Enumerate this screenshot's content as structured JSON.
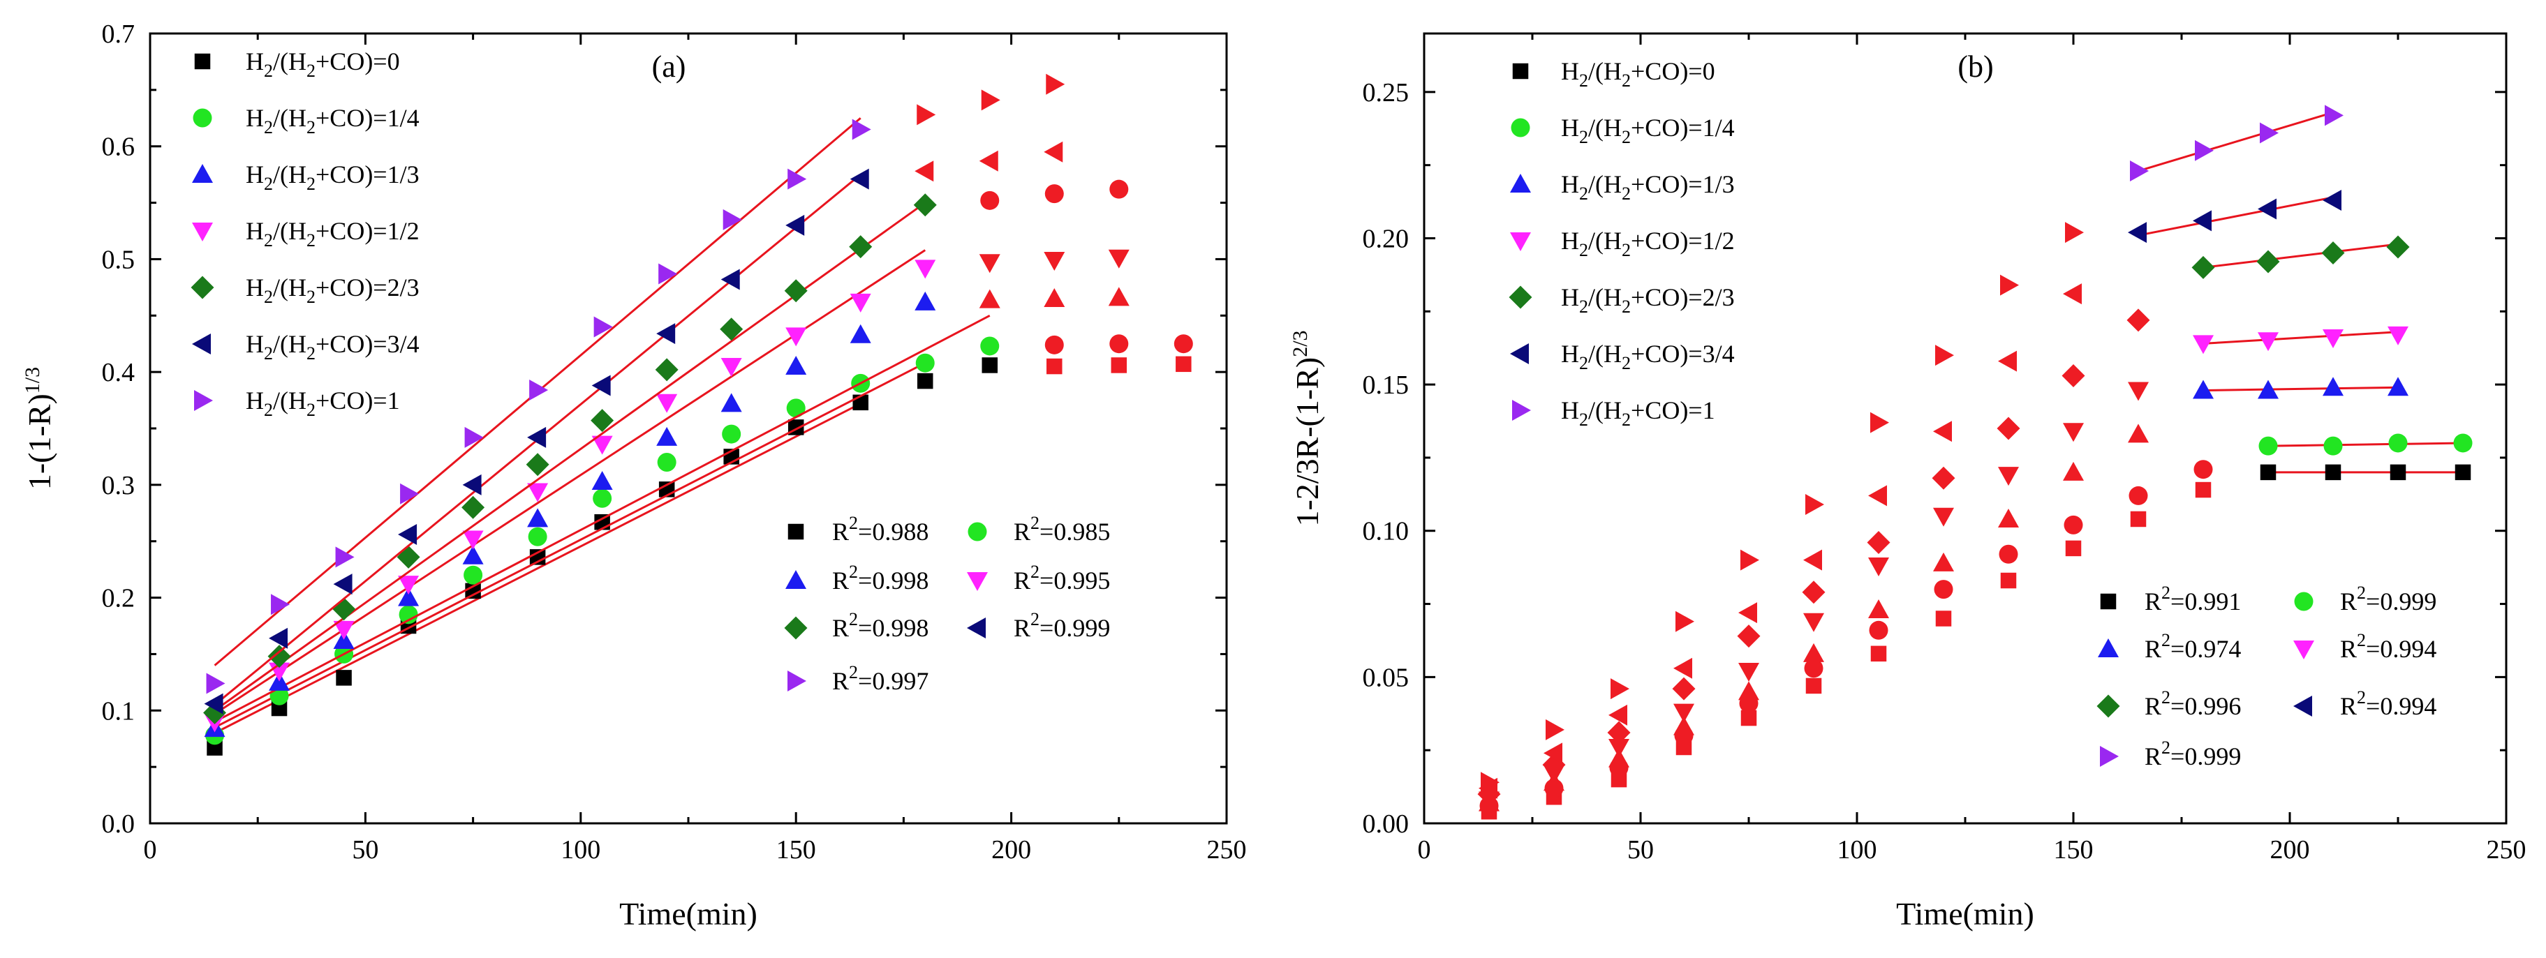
{
  "chart_data": [
    {
      "type": "scatter",
      "panel_label": "(a)",
      "xlabel": "Time(min)",
      "ylabel_base": "1-(1-R)",
      "ylabel_sup": "1/3",
      "xlim": [
        0,
        250
      ],
      "ylim": [
        0,
        0.7
      ],
      "xticks": [
        "0",
        "50",
        "100",
        "150",
        "200",
        "250"
      ],
      "yticks": [
        "0.0",
        "0.1",
        "0.2",
        "0.3",
        "0.4",
        "0.5",
        "0.6",
        "0.7"
      ],
      "series": [
        {
          "legend": "H2/(H2+CO)=0",
          "legend_pre": "H",
          "legend_mid": "/(H",
          "legend_post": "+CO)=0",
          "marker": "square",
          "color": "#000000",
          "x": [
            15,
            30,
            45,
            60,
            75,
            90,
            105,
            120,
            135,
            150,
            165,
            180,
            195
          ],
          "y": [
            0.067,
            0.102,
            0.129,
            0.175,
            0.206,
            0.236,
            0.267,
            0.296,
            0.325,
            0.351,
            0.373,
            0.392,
            0.406
          ],
          "fit": [
            [
              15,
              0.08
            ],
            [
              165,
              0.372
            ]
          ],
          "r2": "0.988"
        },
        {
          "legend": "H2/(H2+CO)=1/4",
          "legend_pre": "H",
          "legend_mid": "/(H",
          "legend_post": "+CO)=1/4",
          "marker": "circle",
          "color": "#22e522",
          "x": [
            15,
            30,
            45,
            60,
            75,
            90,
            105,
            120,
            135,
            150,
            165,
            180,
            195
          ],
          "y": [
            0.078,
            0.113,
            0.15,
            0.185,
            0.22,
            0.254,
            0.288,
            0.32,
            0.345,
            0.368,
            0.39,
            0.408,
            0.423
          ],
          "fit": [
            [
              15,
              0.085
            ],
            [
              180,
              0.408
            ]
          ],
          "r2": "0.985"
        },
        {
          "legend": "H2/(H2+CO)=1/3",
          "legend_pre": "H",
          "legend_mid": "/(H",
          "legend_post": "+CO)=1/3",
          "marker": "triangle-up",
          "color": "#1c1cf0",
          "x": [
            15,
            30,
            45,
            60,
            75,
            90,
            105,
            120,
            135,
            150,
            165,
            180
          ],
          "y": [
            0.084,
            0.125,
            0.162,
            0.2,
            0.237,
            0.27,
            0.303,
            0.342,
            0.372,
            0.405,
            0.433,
            0.462
          ],
          "fit": [
            [
              15,
              0.09
            ],
            [
              195,
              0.45
            ]
          ],
          "r2": "0.998"
        },
        {
          "legend": "H2/(H2+CO)=1/2",
          "legend_pre": "H",
          "legend_mid": "/(H",
          "legend_post": "+CO)=1/2",
          "marker": "triangle-down",
          "color": "#ff22ff",
          "x": [
            15,
            30,
            45,
            60,
            75,
            90,
            105,
            120,
            135,
            150,
            165,
            180
          ],
          "y": [
            0.09,
            0.135,
            0.172,
            0.212,
            0.252,
            0.294,
            0.336,
            0.373,
            0.405,
            0.432,
            0.462,
            0.492
          ],
          "fit": [
            [
              15,
              0.097
            ],
            [
              180,
              0.508
            ]
          ],
          "r2": "0.995"
        },
        {
          "legend": "H2/(H2+CO)=2/3",
          "legend_pre": "H",
          "legend_mid": "/(H",
          "legend_post": "+CO)=2/3",
          "marker": "diamond",
          "color": "#1a7a1a",
          "x": [
            15,
            30,
            45,
            60,
            75,
            90,
            105,
            120,
            135,
            150,
            165,
            180
          ],
          "y": [
            0.098,
            0.148,
            0.19,
            0.236,
            0.28,
            0.318,
            0.357,
            0.402,
            0.438,
            0.472,
            0.511,
            0.548
          ],
          "fit": [
            [
              15,
              0.1
            ],
            [
              180,
              0.55
            ]
          ],
          "r2": "0.998"
        },
        {
          "legend": "H2/(H2+CO)=3/4",
          "legend_pre": "H",
          "legend_mid": "/(H",
          "legend_post": "+CO)=3/4",
          "marker": "triangle-left",
          "color": "#0a0a78",
          "x": [
            15,
            30,
            45,
            60,
            75,
            90,
            105,
            120,
            135,
            150,
            165
          ],
          "y": [
            0.106,
            0.164,
            0.212,
            0.256,
            0.3,
            0.342,
            0.388,
            0.434,
            0.482,
            0.53,
            0.571
          ],
          "fit": [
            [
              15,
              0.105
            ],
            [
              165,
              0.575
            ]
          ],
          "r2": "0.999"
        },
        {
          "legend": "H2/(H2+CO)=1",
          "legend_pre": "H",
          "legend_mid": "/(H",
          "legend_post": "+CO)=1",
          "marker": "triangle-right",
          "color": "#9a28f0",
          "x": [
            15,
            30,
            45,
            60,
            75,
            90,
            105,
            120,
            135,
            150,
            165
          ],
          "y": [
            0.124,
            0.194,
            0.236,
            0.292,
            0.342,
            0.384,
            0.44,
            0.487,
            0.535,
            0.571,
            0.615
          ],
          "fit": [
            [
              15,
              0.14
            ],
            [
              165,
              0.625
            ]
          ],
          "r2": "0.997"
        }
      ],
      "extra_points": [
        {
          "marker": "square",
          "x": [
            210,
            225,
            240
          ],
          "y": [
            0.405,
            0.406,
            0.407
          ]
        },
        {
          "marker": "circle",
          "x": [
            210,
            225,
            240
          ],
          "y": [
            0.424,
            0.425,
            0.425
          ]
        },
        {
          "marker": "triangle-up",
          "x": [
            195,
            210,
            225
          ],
          "y": [
            0.464,
            0.465,
            0.466
          ]
        },
        {
          "marker": "triangle-down",
          "x": [
            195,
            210,
            225
          ],
          "y": [
            0.497,
            0.499,
            0.501
          ]
        },
        {
          "marker": "circle",
          "x": [
            195,
            210,
            225
          ],
          "y": [
            0.552,
            0.558,
            0.562
          ]
        },
        {
          "marker": "triangle-left",
          "x": [
            180,
            195,
            210
          ],
          "y": [
            0.578,
            0.587,
            0.595
          ]
        },
        {
          "marker": "triangle-right",
          "x": [
            180,
            195,
            210
          ],
          "y": [
            0.628,
            0.641,
            0.655
          ]
        }
      ],
      "r2_prefix": "R",
      "r2_sup": "2",
      "r2_eq": "="
    },
    {
      "type": "scatter",
      "panel_label": "(b)",
      "xlabel": "Time(min)",
      "ylabel_base": "1-2/3R-(1-R)",
      "ylabel_sup": "2/3",
      "xlim": [
        0,
        250
      ],
      "ylim": [
        0,
        0.27
      ],
      "xticks": [
        "0",
        "50",
        "100",
        "150",
        "200",
        "250"
      ],
      "yticks": [
        "0.00",
        "0.05",
        "0.10",
        "0.15",
        "0.20",
        "0.25"
      ],
      "ytick_values": [
        0,
        0.05,
        0.1,
        0.15,
        0.2,
        0.25
      ],
      "series": [
        {
          "legend": "H2/(H2+CO)=0",
          "legend_pre": "H",
          "legend_mid": "/(H",
          "legend_post": "+CO)=0",
          "marker": "square",
          "color": "#000000",
          "x": [
            195,
            210,
            225,
            240
          ],
          "y": [
            0.12,
            0.12,
            0.12,
            0.12
          ],
          "fit": [
            [
              195,
              0.12
            ],
            [
              240,
              0.12
            ]
          ],
          "r2": "0.991"
        },
        {
          "legend": "H2/(H2+CO)=1/4",
          "legend_pre": "H",
          "legend_mid": "/(H",
          "legend_post": "+CO)=1/4",
          "marker": "circle",
          "color": "#22e522",
          "x": [
            195,
            210,
            225,
            240
          ],
          "y": [
            0.129,
            0.129,
            0.13,
            0.13
          ],
          "fit": [
            [
              195,
              0.129
            ],
            [
              240,
              0.13
            ]
          ],
          "r2": "0.999"
        },
        {
          "legend": "H2/(H2+CO)=1/3",
          "legend_pre": "H",
          "legend_mid": "/(H",
          "legend_post": "+CO)=1/3",
          "marker": "triangle-up",
          "color": "#1c1cf0",
          "x": [
            180,
            195,
            210,
            225
          ],
          "y": [
            0.148,
            0.148,
            0.149,
            0.149
          ],
          "fit": [
            [
              180,
              0.148
            ],
            [
              225,
              0.149
            ]
          ],
          "r2": "0.974"
        },
        {
          "legend": "H2/(H2+CO)=1/2",
          "legend_pre": "H",
          "legend_mid": "/(H",
          "legend_post": "+CO)=1/2",
          "marker": "triangle-down",
          "color": "#ff22ff",
          "x": [
            180,
            195,
            210,
            225
          ],
          "y": [
            0.164,
            0.165,
            0.166,
            0.167
          ],
          "fit": [
            [
              180,
              0.164
            ],
            [
              225,
              0.168
            ]
          ],
          "r2": "0.994"
        },
        {
          "legend": "H2/(H2+CO)=2/3",
          "legend_pre": "H",
          "legend_mid": "/(H",
          "legend_post": "+CO)=2/3",
          "marker": "diamond",
          "color": "#1a7a1a",
          "x": [
            180,
            195,
            210,
            225
          ],
          "y": [
            0.19,
            0.192,
            0.195,
            0.197
          ],
          "fit": [
            [
              180,
              0.19
            ],
            [
              225,
              0.198
            ]
          ],
          "r2": "0.996"
        },
        {
          "legend": "H2/(H2+CO)=3/4",
          "legend_pre": "H",
          "legend_mid": "/(H",
          "legend_post": "+CO)=3/4",
          "marker": "triangle-left",
          "color": "#0a0a78",
          "x": [
            165,
            180,
            195,
            210
          ],
          "y": [
            0.202,
            0.206,
            0.21,
            0.213
          ],
          "fit": [
            [
              165,
              0.201
            ],
            [
              210,
              0.214
            ]
          ],
          "r2": "0.994"
        },
        {
          "legend": "H2/(H2+CO)=1",
          "legend_pre": "H",
          "legend_mid": "/(H",
          "legend_post": "+CO)=1",
          "marker": "triangle-right",
          "color": "#9a28f0",
          "x": [
            165,
            180,
            195,
            210
          ],
          "y": [
            0.223,
            0.23,
            0.236,
            0.242
          ],
          "fit": [
            [
              165,
              0.223
            ],
            [
              210,
              0.243
            ]
          ],
          "r2": "0.999"
        }
      ],
      "extra_points": [
        {
          "marker": "square",
          "x": [
            15,
            30,
            45,
            60,
            75,
            90,
            105,
            120,
            135,
            150,
            165,
            180
          ],
          "y": [
            0.004,
            0.009,
            0.015,
            0.026,
            0.036,
            0.047,
            0.058,
            0.07,
            0.083,
            0.094,
            0.104,
            0.114
          ]
        },
        {
          "marker": "circle",
          "x": [
            15,
            30,
            45,
            60,
            75,
            90,
            105,
            120,
            135,
            150,
            165,
            180
          ],
          "y": [
            0.006,
            0.012,
            0.019,
            0.03,
            0.041,
            0.053,
            0.066,
            0.08,
            0.092,
            0.102,
            0.112,
            0.121
          ]
        },
        {
          "marker": "triangle-up",
          "x": [
            15,
            30,
            45,
            60,
            75,
            90,
            105,
            120,
            135,
            150,
            165
          ],
          "y": [
            0.007,
            0.014,
            0.022,
            0.033,
            0.045,
            0.058,
            0.073,
            0.089,
            0.104,
            0.12,
            0.133
          ]
        },
        {
          "marker": "triangle-down",
          "x": [
            15,
            30,
            45,
            60,
            75,
            90,
            105,
            120,
            135,
            150,
            165
          ],
          "y": [
            0.008,
            0.017,
            0.026,
            0.038,
            0.052,
            0.069,
            0.088,
            0.105,
            0.119,
            0.134,
            0.148
          ]
        },
        {
          "marker": "diamond",
          "x": [
            15,
            30,
            45,
            60,
            75,
            90,
            105,
            120,
            135,
            150,
            165
          ],
          "y": [
            0.01,
            0.02,
            0.031,
            0.046,
            0.064,
            0.079,
            0.096,
            0.118,
            0.135,
            0.153,
            0.172
          ]
        },
        {
          "marker": "triangle-left",
          "x": [
            15,
            30,
            45,
            60,
            75,
            90,
            105,
            120,
            135,
            150
          ],
          "y": [
            0.012,
            0.024,
            0.037,
            0.053,
            0.072,
            0.09,
            0.112,
            0.134,
            0.158,
            0.181
          ]
        },
        {
          "marker": "triangle-right",
          "x": [
            15,
            30,
            45,
            60,
            75,
            90,
            105,
            120,
            135,
            150
          ],
          "y": [
            0.014,
            0.032,
            0.046,
            0.069,
            0.09,
            0.109,
            0.137,
            0.16,
            0.184,
            0.202
          ]
        }
      ],
      "r2_prefix": "R",
      "r2_sup": "2",
      "r2_eq": "="
    }
  ],
  "legend_sub": "2",
  "colors": {
    "fit_line": "#e8141e",
    "extra_points": "#ee1c24",
    "axis": "#000000"
  }
}
